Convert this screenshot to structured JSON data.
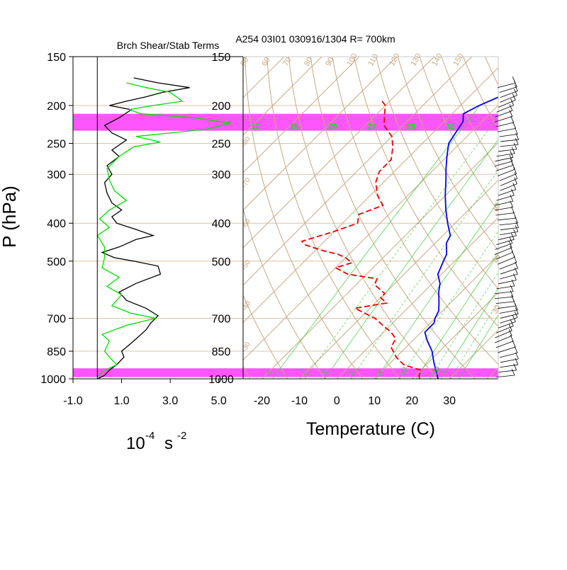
{
  "figure": {
    "left_title": "Brch Shear/Stab Terms",
    "right_title": "A254 03I01 030916/1304 R= 700km",
    "y_axis_label": "P (hPa)",
    "left_x_unit": "10-4 s -2",
    "left_x_unit_base": "10",
    "left_x_unit_exp": "-4",
    "left_x_unit_s": "s",
    "left_x_unit_exp2": "-2",
    "right_x_label": "Temperature (C)"
  },
  "colors": {
    "shear_term": "#000000",
    "stability_term": "#00dd00",
    "temperature": "#0000ee",
    "dewpoint": "#ee0000",
    "highlight_band": "#ff55ff",
    "skewt_grid": "#c8a882",
    "mixing_ratio": "#33cc33",
    "wind_barb": "#000000"
  },
  "chart_data": [
    {
      "type": "line",
      "name": "bulk-richardson-terms",
      "title": "Brch Shear/Stab Terms",
      "xlabel": "10-4 s -2",
      "ylabel": "P (hPa)",
      "y_scale": "log",
      "y_reversed": true,
      "xlim": [
        -1.0,
        6.0
      ],
      "ylim": [
        1000,
        150
      ],
      "x_ticks": [
        "-1.0",
        "1.0",
        "3.0",
        "5.0"
      ],
      "x_tick_values": [
        -1.0,
        1.0,
        3.0,
        5.0
      ],
      "y_ticks": [
        150,
        200,
        250,
        300,
        400,
        500,
        700,
        850,
        1000
      ],
      "highlight_bands_hpa": [
        [
          210,
          232
        ],
        [
          940,
          990
        ]
      ],
      "series": [
        {
          "color_key": "shear_term",
          "points": [
            [
              0.0,
              1000
            ],
            [
              0.3,
              980
            ],
            [
              0.5,
              950
            ],
            [
              0.8,
              920
            ],
            [
              1.1,
              880
            ],
            [
              1.0,
              850
            ],
            [
              1.3,
              820
            ],
            [
              1.6,
              790
            ],
            [
              2.0,
              750
            ],
            [
              2.2,
              720
            ],
            [
              2.5,
              690
            ],
            [
              2.0,
              660
            ],
            [
              1.2,
              630
            ],
            [
              0.9,
              600
            ],
            [
              1.6,
              570
            ],
            [
              2.6,
              540
            ],
            [
              2.5,
              515
            ],
            [
              1.5,
              500
            ],
            [
              0.7,
              490
            ],
            [
              0.2,
              475
            ],
            [
              0.9,
              460
            ],
            [
              1.6,
              440
            ],
            [
              2.3,
              430
            ],
            [
              1.6,
              415
            ],
            [
              0.8,
              400
            ],
            [
              0.6,
              385
            ],
            [
              1.0,
              370
            ],
            [
              0.6,
              355
            ],
            [
              0.4,
              335
            ],
            [
              0.3,
              315
            ],
            [
              0.6,
              300
            ],
            [
              0.4,
              285
            ],
            [
              0.9,
              270
            ],
            [
              0.6,
              260
            ],
            [
              1.2,
              245
            ],
            [
              0.6,
              235
            ],
            [
              0.3,
              225
            ],
            [
              0.9,
              215
            ],
            [
              1.4,
              205
            ],
            [
              0.5,
              200
            ],
            [
              1.2,
              195
            ],
            [
              2.0,
              190
            ],
            [
              2.7,
              185
            ],
            [
              3.8,
              180
            ],
            [
              2.5,
              175
            ],
            [
              1.5,
              170
            ]
          ]
        },
        {
          "color_key": "stability_term",
          "points": [
            [
              0.0,
              990
            ],
            [
              0.2,
              960
            ],
            [
              0.8,
              920
            ],
            [
              0.5,
              880
            ],
            [
              0.3,
              850
            ],
            [
              0.5,
              800
            ],
            [
              0.2,
              770
            ],
            [
              1.2,
              730
            ],
            [
              2.4,
              700
            ],
            [
              1.4,
              680
            ],
            [
              0.6,
              650
            ],
            [
              1.0,
              610
            ],
            [
              0.4,
              580
            ],
            [
              0.9,
              550
            ],
            [
              0.2,
              520
            ],
            [
              0.3,
              490
            ],
            [
              0.3,
              460
            ],
            [
              0.0,
              430
            ],
            [
              0.5,
              410
            ],
            [
              0.1,
              390
            ],
            [
              0.5,
              370
            ],
            [
              1.2,
              350
            ],
            [
              0.7,
              330
            ],
            [
              0.5,
              310
            ],
            [
              0.4,
              290
            ],
            [
              0.9,
              270
            ],
            [
              1.5,
              255
            ],
            [
              2.6,
              248
            ],
            [
              1.6,
              240
            ],
            [
              4.5,
              230
            ],
            [
              5.5,
              222
            ],
            [
              4.0,
              215
            ],
            [
              1.8,
              210
            ],
            [
              1.3,
              205
            ],
            [
              2.3,
              200
            ],
            [
              3.5,
              195
            ],
            [
              3.0,
              185
            ],
            [
              2.0,
              180
            ],
            [
              1.2,
              175
            ]
          ]
        }
      ]
    },
    {
      "type": "line",
      "name": "skew-t-log-p",
      "title": "A254 03I01 030916/1304 R= 700km",
      "xlabel": "Temperature (C)",
      "ylabel": "",
      "y_scale": "log",
      "y_reversed": true,
      "xlim": [
        -25,
        43
      ],
      "ylim": [
        1000,
        150
      ],
      "x_ticks": [
        "-20",
        "-10",
        "0",
        "10",
        "20",
        "30"
      ],
      "x_tick_values": [
        -20,
        -10,
        0,
        10,
        20,
        30
      ],
      "y_ticks": [
        "150",
        "200",
        "250",
        "300",
        "400",
        "500",
        "700",
        "850",
        "1000"
      ],
      "y_tick_values": [
        150,
        200,
        250,
        300,
        400,
        500,
        700,
        850,
        1000
      ],
      "theta_labels": [
        "50",
        "60",
        "70",
        "80",
        "90",
        "100",
        "110",
        "120",
        "130",
        "140",
        "150"
      ],
      "mixing_ratio_top_labels": [
        "12",
        "16",
        "20",
        "24",
        "28",
        "32"
      ],
      "mixing_ratio_bottom_labels": [
        "1",
        "2",
        "3",
        "5",
        "8",
        "12",
        "20"
      ],
      "skew_slope_labels": [
        "-80",
        "-70",
        "-60",
        "-50",
        "-40",
        "-30"
      ],
      "right_isotherm_labels": [
        "10",
        "20",
        "30"
      ],
      "series": [
        {
          "name": "Temperature",
          "color_key": "temperature",
          "style": "solid",
          "points": [
            [
              -30,
              175
            ],
            [
              -32,
              190
            ],
            [
              -35,
              200
            ],
            [
              -37,
              210
            ],
            [
              -35,
              220
            ],
            [
              -34,
              235
            ],
            [
              -33,
              250
            ],
            [
              -30,
              270
            ],
            [
              -27,
              290
            ],
            [
              -24,
              310
            ],
            [
              -20,
              340
            ],
            [
              -16,
              370
            ],
            [
              -12,
              400
            ],
            [
              -8,
              430
            ],
            [
              -7,
              450
            ],
            [
              -4,
              480
            ],
            [
              -3,
              500
            ],
            [
              -1,
              540
            ],
            [
              2,
              570
            ],
            [
              4,
              600
            ],
            [
              7,
              640
            ],
            [
              9,
              670
            ],
            [
              10,
              700
            ],
            [
              11,
              720
            ],
            [
              11,
              760
            ],
            [
              14,
              800
            ],
            [
              18,
              850
            ],
            [
              21,
              900
            ],
            [
              24,
              950
            ],
            [
              27,
              1000
            ]
          ]
        },
        {
          "name": "Dewpoint",
          "color_key": "dewpoint",
          "style": "dashed",
          "points": [
            [
              -62,
              195
            ],
            [
              -60,
              200
            ],
            [
              -58,
              210
            ],
            [
              -55,
              225
            ],
            [
              -50,
              240
            ],
            [
              -47,
              255
            ],
            [
              -44,
              275
            ],
            [
              -44,
              295
            ],
            [
              -42,
              315
            ],
            [
              -38,
              340
            ],
            [
              -34,
              360
            ],
            [
              -38,
              380
            ],
            [
              -36,
              400
            ],
            [
              -40,
              420
            ],
            [
              -46,
              445
            ],
            [
              -44,
              455
            ],
            [
              -38,
              470
            ],
            [
              -33,
              480
            ],
            [
              -30,
              490
            ],
            [
              -27,
              505
            ],
            [
              -30,
              520
            ],
            [
              -25,
              540
            ],
            [
              -16,
              555
            ],
            [
              -15,
              575
            ],
            [
              -10,
              605
            ],
            [
              -10,
              620
            ],
            [
              -7,
              640
            ],
            [
              -14,
              660
            ],
            [
              -10,
              680
            ],
            [
              -6,
              700
            ],
            [
              -2,
              730
            ],
            [
              2,
              760
            ],
            [
              5,
              790
            ],
            [
              6,
              830
            ],
            [
              10,
              880
            ],
            [
              14,
              920
            ],
            [
              20,
              950
            ],
            [
              21,
              980
            ],
            [
              22,
              1000
            ]
          ]
        }
      ],
      "wind_barbs": {
        "count": 60,
        "pressure_range_hpa": [
          180,
          990
        ]
      }
    }
  ]
}
